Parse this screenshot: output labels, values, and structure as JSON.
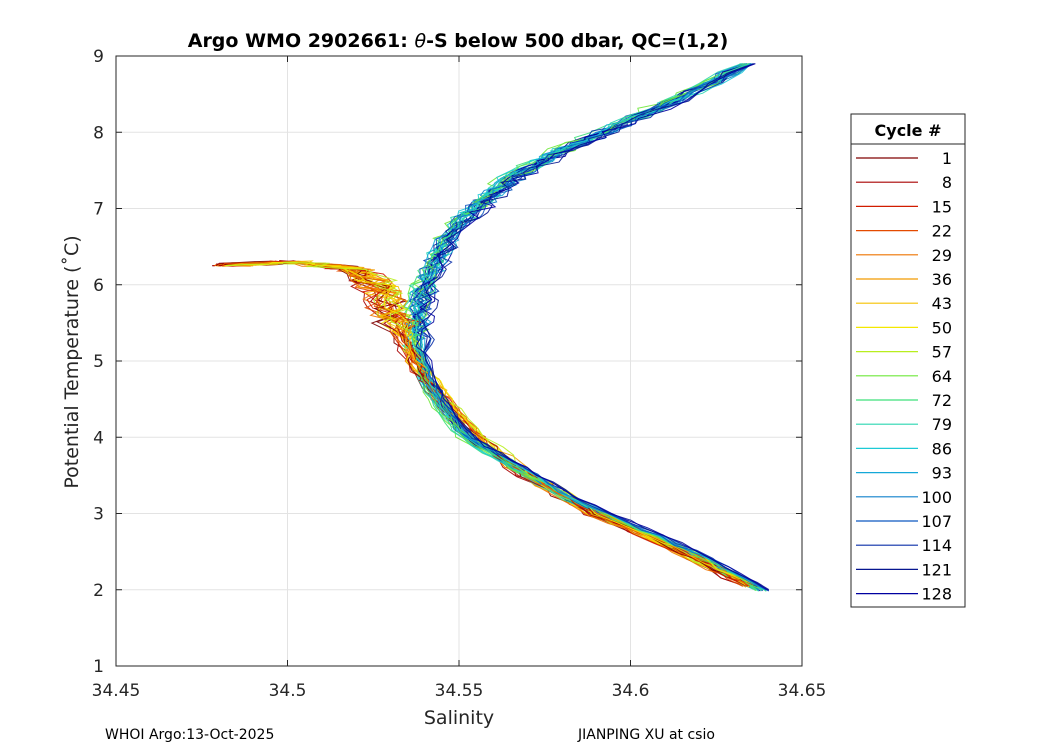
{
  "chart_data": {
    "type": "line",
    "title_prefix": "Argo WMO 2902661: ",
    "title_symbol": "θ",
    "title_suffix": "-S below 500 dbar,  QC=(1,2)",
    "xlabel": "Salinity",
    "ylabel": "Potential Temperature (˚C)",
    "xlim": [
      34.45,
      34.65
    ],
    "ylim": [
      1,
      9
    ],
    "xticks": [
      34.45,
      34.5,
      34.55,
      34.6,
      34.65
    ],
    "xtick_labels": [
      "34.45",
      "34.5",
      "34.55",
      "34.6",
      "34.65"
    ],
    "yticks": [
      1,
      2,
      3,
      4,
      5,
      6,
      7,
      8,
      9
    ],
    "ytick_labels": [
      "1",
      "2",
      "3",
      "4",
      "5",
      "6",
      "7",
      "8",
      "9"
    ],
    "grid": true,
    "legend": {
      "title": "Cycle #",
      "position": "right",
      "entries": [
        {
          "label": "1",
          "color": "#800000"
        },
        {
          "label": "8",
          "color": "#a80000"
        },
        {
          "label": "15",
          "color": "#d11c00"
        },
        {
          "label": "22",
          "color": "#e44a00"
        },
        {
          "label": "29",
          "color": "#ee7400"
        },
        {
          "label": "36",
          "color": "#f29b00"
        },
        {
          "label": "43",
          "color": "#f5c200"
        },
        {
          "label": "50",
          "color": "#f4e800"
        },
        {
          "label": "57",
          "color": "#b8ee1e"
        },
        {
          "label": "64",
          "color": "#6fe83a"
        },
        {
          "label": "72",
          "color": "#3ee07b"
        },
        {
          "label": "79",
          "color": "#2ad6b0"
        },
        {
          "label": "86",
          "color": "#1ccad6"
        },
        {
          "label": "93",
          "color": "#14a8d8"
        },
        {
          "label": "100",
          "color": "#1080cc"
        },
        {
          "label": "107",
          "color": "#0c57c0"
        },
        {
          "label": "114",
          "color": "#0a2fa8"
        },
        {
          "label": "121",
          "color": "#071690"
        },
        {
          "label": "128",
          "color": "#0000a0"
        }
      ]
    },
    "profile_template": {
      "salinity": [
        34.636,
        34.62,
        34.6,
        34.58,
        34.565,
        34.55,
        34.543,
        34.538,
        34.536,
        34.536,
        34.538,
        34.542,
        34.548,
        34.555,
        34.563,
        34.575,
        34.59,
        34.61,
        34.632
      ],
      "theta": [
        2.0,
        2.4,
        2.8,
        3.2,
        3.6,
        4.0,
        4.4,
        4.8,
        5.2,
        5.6,
        6.0,
        6.4,
        6.8,
        7.1,
        7.4,
        7.7,
        8.0,
        8.4,
        8.9
      ]
    },
    "early_profile_template": {
      "salinity": [
        34.635,
        34.615,
        34.59,
        34.57,
        34.555,
        34.545,
        34.537,
        34.532,
        34.528,
        34.52,
        34.5,
        34.48
      ],
      "theta": [
        2.05,
        2.5,
        3.0,
        3.5,
        4.0,
        4.5,
        5.0,
        5.5,
        5.9,
        6.2,
        6.3,
        6.25
      ]
    }
  },
  "footer": {
    "left": "WHOI Argo:13-Oct-2025",
    "right": "JIANPING XU at csio"
  }
}
